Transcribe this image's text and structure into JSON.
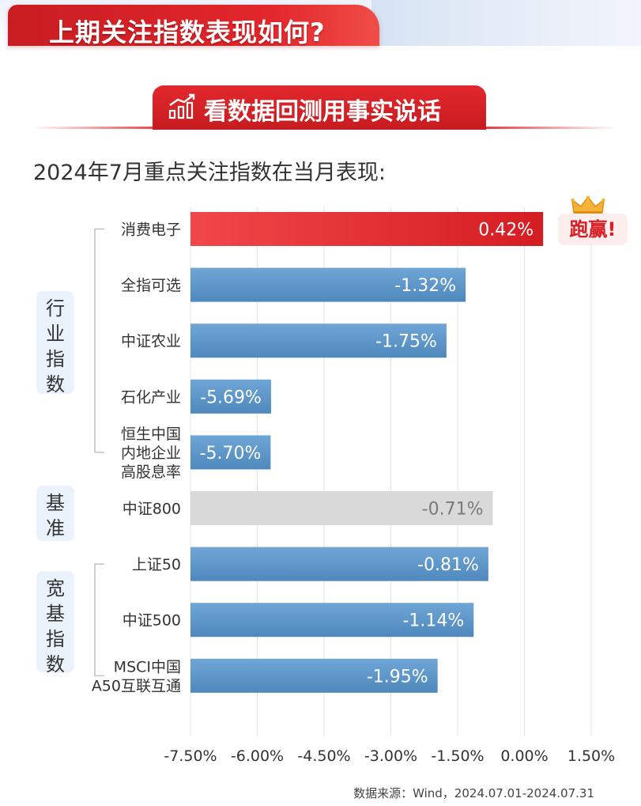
{
  "header": {
    "title": "上期关注指数表现如何?"
  },
  "sub_banner": {
    "title": "看数据回测用事实说话",
    "icon": "bar-chart-rising-icon"
  },
  "chart_heading": "2024年7月重点关注指数在当月表现:",
  "badge": {
    "text": "跑赢!",
    "icon": "crown-icon"
  },
  "groups": [
    {
      "label": "行业指数",
      "chars": [
        "行",
        "业",
        "指",
        "数"
      ]
    },
    {
      "label": "基准",
      "chars": [
        "基",
        "准"
      ]
    },
    {
      "label": "宽基指数",
      "chars": [
        "宽",
        "基",
        "指",
        "数"
      ]
    }
  ],
  "source": "数据来源：Wind，2024.07.01-2024.07.31",
  "colors": {
    "accent_red": "#e2262b",
    "bar_blue": "#5b95c7",
    "bar_gray": "#d9d9d9",
    "text_dark": "#333333"
  },
  "chart_data": {
    "type": "bar",
    "orientation": "horizontal",
    "categories": [
      "消费电子",
      "全指可选",
      "中证农业",
      "石化产业",
      "恒生中国内地企业高股息率",
      "中证800",
      "上证50",
      "中证500",
      "MSCI中国A50互联互通"
    ],
    "category_lines": [
      [
        "消费电子"
      ],
      [
        "全指可选"
      ],
      [
        "中证农业"
      ],
      [
        "石化产业"
      ],
      [
        "恒生中国",
        "内地企业",
        "高股息率"
      ],
      [
        "中证800"
      ],
      [
        "上证50"
      ],
      [
        "中证500"
      ],
      [
        "MSCI中国",
        "A50互联互通"
      ]
    ],
    "values": [
      0.42,
      -1.32,
      -1.75,
      -5.69,
      -5.7,
      -0.71,
      -0.81,
      -1.14,
      -1.95
    ],
    "value_labels": [
      "0.42%",
      "-1.32%",
      "-1.75%",
      "-5.69%",
      "-5.70%",
      "-0.71%",
      "-0.81%",
      "-1.14%",
      "-1.95%"
    ],
    "bar_styles": [
      "highlight",
      "normal",
      "normal",
      "normal",
      "normal",
      "benchmark",
      "normal",
      "normal",
      "normal"
    ],
    "group_index": [
      0,
      0,
      0,
      0,
      0,
      1,
      2,
      2,
      2
    ],
    "xlim": [
      -7.5,
      1.5
    ],
    "xticks": [
      -7.5,
      -6.0,
      -4.5,
      -3.0,
      -1.5,
      0.0,
      1.5
    ],
    "xtick_labels": [
      "-7.50%",
      "-6.00%",
      "-4.50%",
      "-3.00%",
      "-1.50%",
      "0.00%",
      "1.50%"
    ],
    "grid": "vertical",
    "title": "2024年7月重点关注指数在当月表现:",
    "xlabel": "",
    "ylabel": ""
  }
}
